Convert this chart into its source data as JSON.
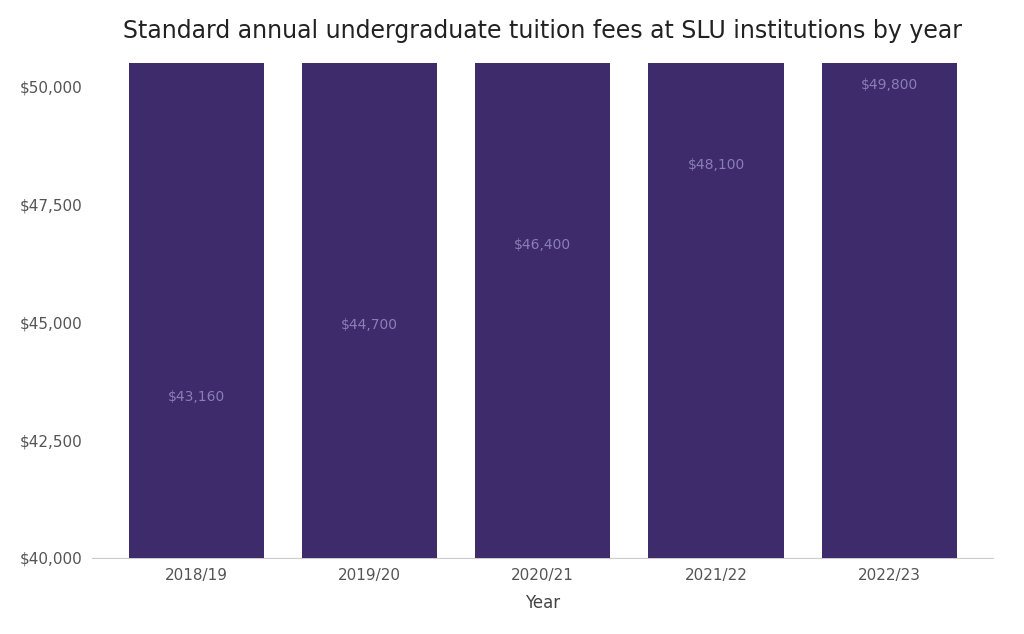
{
  "categories": [
    "2018/19",
    "2019/20",
    "2020/21",
    "2021/22",
    "2022/23"
  ],
  "values": [
    43160,
    44700,
    46400,
    48100,
    49800
  ],
  "labels": [
    "$43,160",
    "$44,700",
    "$46,400",
    "$48,100",
    "$49,800"
  ],
  "bar_color": "#3d2b6b",
  "label_color": "#8b7db5",
  "title": "Standard annual undergraduate tuition fees at SLU institutions by year",
  "xlabel": "Year",
  "ylabel": "",
  "ylim": [
    40000,
    50500
  ],
  "yticks": [
    40000,
    42500,
    45000,
    47500,
    50000
  ],
  "ytick_labels": [
    "$40,000",
    "$42,500",
    "$45,000",
    "$47,500",
    "$50,000"
  ],
  "title_fontsize": 17,
  "axis_label_fontsize": 12,
  "tick_fontsize": 11,
  "bar_label_fontsize": 10,
  "bar_width": 0.78,
  "background_color": "#ffffff"
}
